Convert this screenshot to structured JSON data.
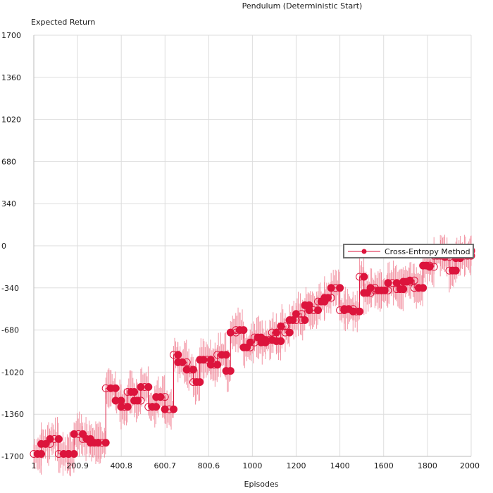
{
  "chart_data": {
    "type": "line",
    "title": "Pendulum (Deterministic Start)",
    "xlabel": "Episodes",
    "ylabel": "Expected Return",
    "xlim": [
      1,
      2000
    ],
    "ylim": [
      -1700,
      1700
    ],
    "x_ticks": [
      1,
      200.9,
      400.8,
      600.7,
      800.6,
      1000,
      1200,
      1400,
      1600,
      1800,
      2000
    ],
    "x_tick_labels": [
      "1",
      "200.9",
      "400.8",
      "600.7",
      "800.6",
      "1000",
      "1200",
      "1400",
      "1600",
      "1800",
      "2000"
    ],
    "y_ticks": [
      1700,
      1360,
      1020,
      680,
      340,
      0,
      -340,
      -680,
      -1020,
      -1360,
      -1700
    ],
    "y_tick_labels": [
      "1700",
      "1360",
      "1020",
      "680",
      "340",
      "0",
      "-340",
      "-680",
      "-1020",
      "-1360",
      "-1700"
    ],
    "grid": true,
    "legend_position": "right",
    "colors": {
      "series": "#dc143c",
      "band": "#f07b8e",
      "grid": "#dddddd",
      "legend_border": "#707070"
    },
    "series": [
      {
        "name": "Cross-Entropy Method",
        "x": [
          1,
          35,
          75,
          115,
          160,
          185,
          225,
          260,
          295,
          330,
          375,
          400,
          430,
          460,
          490,
          525,
          560,
          600,
          640,
          660,
          700,
          730,
          760,
          810,
          840,
          880,
          900,
          925,
          960,
          990,
          1010,
          1040,
          1060,
          1090,
          1110,
          1130,
          1150,
          1170,
          1200,
          1225,
          1240,
          1260,
          1300,
          1330,
          1360,
          1400,
          1420,
          1460,
          1490,
          1510,
          1540,
          1560,
          1590,
          1620,
          1660,
          1690,
          1720,
          1740,
          1780,
          1810,
          1830,
          1860,
          1880,
          1900,
          1930,
          1950,
          2000
        ],
        "y": [
          -1680,
          -1600,
          -1560,
          -1680,
          -1680,
          -1520,
          -1560,
          -1590,
          -1590,
          -1150,
          -1250,
          -1300,
          -1180,
          -1250,
          -1140,
          -1300,
          -1220,
          -1320,
          -880,
          -940,
          -1000,
          -1100,
          -920,
          -960,
          -880,
          -1010,
          -700,
          -680,
          -820,
          -780,
          -740,
          -780,
          -760,
          -700,
          -770,
          -650,
          -700,
          -600,
          -550,
          -600,
          -480,
          -520,
          -450,
          -420,
          -340,
          -520,
          -510,
          -530,
          -250,
          -380,
          -340,
          -360,
          -360,
          -300,
          -350,
          -290,
          -280,
          -340,
          -160,
          -170,
          -80,
          -60,
          -90,
          -200,
          -100,
          -80,
          -40
        ]
      }
    ]
  }
}
